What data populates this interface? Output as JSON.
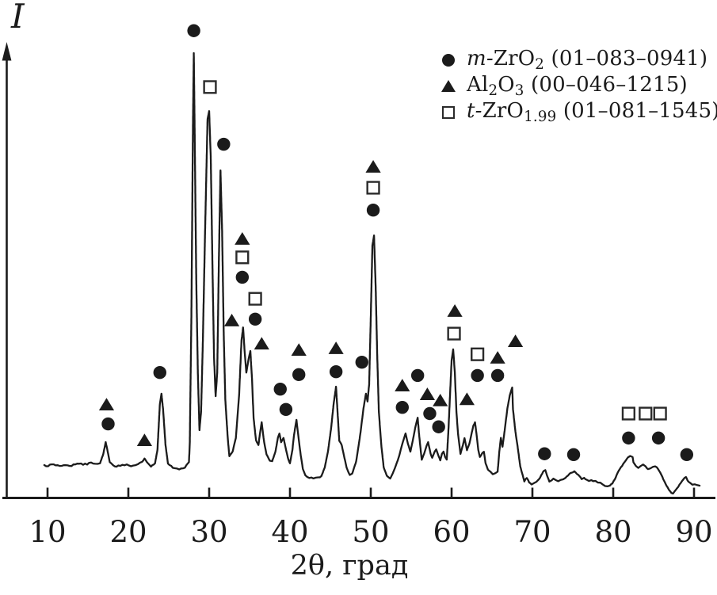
{
  "figure": {
    "y_axis_label": "I",
    "x_axis_label": "2θ, град"
  },
  "legend": {
    "items": [
      {
        "symbol": "filled-circle",
        "phase_id": "m-ZrO2",
        "segments": [
          {
            "text": "m-",
            "style": "italic"
          },
          {
            "text": "ZrO",
            "style": "normal"
          },
          {
            "text": "2",
            "style": "sub"
          },
          {
            "text": " (01–083–0941)",
            "style": "normal"
          }
        ]
      },
      {
        "symbol": "filled-triangle",
        "phase_id": "Al2O3",
        "segments": [
          {
            "text": "Al",
            "style": "normal"
          },
          {
            "text": "2",
            "style": "sub"
          },
          {
            "text": "O",
            "style": "normal"
          },
          {
            "text": "3",
            "style": "sub"
          },
          {
            "text": " (00–046–1215)",
            "style": "normal"
          }
        ]
      },
      {
        "symbol": "open-square",
        "phase_id": "t-ZrO1.99",
        "segments": [
          {
            "text": "t-",
            "style": "italic"
          },
          {
            "text": "ZrO",
            "style": "normal"
          },
          {
            "text": "1.99",
            "style": "sub"
          },
          {
            "text": " (01–081–1545)",
            "style": "normal"
          }
        ]
      }
    ]
  },
  "chart_data": {
    "type": "line",
    "title": "",
    "xlabel": "2θ, град",
    "ylabel": "I",
    "x_range": [
      10,
      90
    ],
    "x_ticks": [
      10,
      20,
      30,
      40,
      50,
      60,
      70,
      80,
      90
    ],
    "y_axis": "relative intensity, arbitrary units (unlabeled)",
    "grid": false,
    "legend_position": "top-right",
    "peaks": [
      {
        "two_theta": 17.2,
        "intensity": 6,
        "phases": [
          "Al2O3",
          "m-ZrO2"
        ]
      },
      {
        "two_theta": 22.0,
        "intensity": 2,
        "phases": [
          "Al2O3"
        ]
      },
      {
        "two_theta": 24.1,
        "intensity": 18,
        "phases": [
          "m-ZrO2"
        ]
      },
      {
        "two_theta": 28.1,
        "intensity": 100,
        "phases": [
          "m-ZrO2"
        ]
      },
      {
        "two_theta": 30.0,
        "intensity": 86,
        "phases": [
          "t-ZrO1.99"
        ]
      },
      {
        "two_theta": 31.4,
        "intensity": 72,
        "phases": [
          "m-ZrO2"
        ]
      },
      {
        "two_theta": 34.2,
        "intensity": 34,
        "phases": [
          "Al2O3",
          "t-ZrO1.99",
          "m-ZrO2"
        ]
      },
      {
        "two_theta": 35.2,
        "intensity": 28,
        "phases": [
          "t-ZrO1.99",
          "m-ZrO2"
        ]
      },
      {
        "two_theta": 36.5,
        "intensity": 11,
        "phases": [
          "Al2O3"
        ]
      },
      {
        "two_theta": 38.7,
        "intensity": 8,
        "phases": [
          "m-ZrO2"
        ]
      },
      {
        "two_theta": 39.5,
        "intensity": 5,
        "phases": [
          "m-ZrO2"
        ]
      },
      {
        "two_theta": 40.8,
        "intensity": 11,
        "phases": [
          "Al2O3",
          "m-ZrO2"
        ]
      },
      {
        "two_theta": 45.7,
        "intensity": 19,
        "phases": [
          "Al2O3",
          "m-ZrO2"
        ]
      },
      {
        "two_theta": 49.4,
        "intensity": 18,
        "phases": [
          "m-ZrO2"
        ]
      },
      {
        "two_theta": 50.4,
        "intensity": 56,
        "phases": [
          "Al2O3",
          "t-ZrO1.99",
          "m-ZrO2"
        ]
      },
      {
        "two_theta": 54.3,
        "intensity": 8,
        "phases": [
          "Al2O3",
          "m-ZrO2"
        ]
      },
      {
        "two_theta": 55.8,
        "intensity": 12,
        "phases": [
          "m-ZrO2"
        ]
      },
      {
        "two_theta": 57.1,
        "intensity": 6,
        "phases": [
          "Al2O3",
          "m-ZrO2"
        ]
      },
      {
        "two_theta": 58.4,
        "intensity": 4,
        "phases": [
          "Al2O3",
          "m-ZrO2"
        ]
      },
      {
        "two_theta": 60.2,
        "intensity": 29,
        "phases": [
          "t-ZrO1.99",
          "Al2O3"
        ]
      },
      {
        "two_theta": 62.9,
        "intensity": 11,
        "phases": [
          "t-ZrO1.99",
          "m-ZrO2"
        ]
      },
      {
        "two_theta": 66.0,
        "intensity": 7,
        "phases": [
          "m-ZrO2"
        ]
      },
      {
        "two_theta": 67.5,
        "intensity": 19,
        "phases": [
          "Al2O3"
        ]
      },
      {
        "two_theta": 71.5,
        "intensity": 3,
        "phases": [
          "m-ZrO2"
        ]
      },
      {
        "two_theta": 75.1,
        "intensity": 3,
        "phases": [
          "m-ZrO2"
        ]
      },
      {
        "two_theta": 82.0,
        "intensity": 8,
        "phases": [
          "t-ZrO1.99",
          "m-ZrO2"
        ]
      },
      {
        "two_theta": 85.5,
        "intensity": 5,
        "phases": [
          "t-ZrO1.99",
          "m-ZrO2"
        ]
      },
      {
        "two_theta": 89.0,
        "intensity": 3,
        "phases": [
          "m-ZrO2"
        ]
      }
    ],
    "markers": {
      "m_zro2_circles": [
        [
          17.5,
          10.5
        ],
        [
          23.9,
          22.9
        ],
        [
          28.1,
          105.4
        ],
        [
          31.8,
          78.0
        ],
        [
          34.1,
          45.9
        ],
        [
          35.7,
          35.8
        ],
        [
          38.8,
          18.9
        ],
        [
          39.5,
          14.0
        ],
        [
          41.1,
          22.4
        ],
        [
          45.7,
          23.1
        ],
        [
          48.9,
          25.4
        ],
        [
          50.3,
          62.1
        ],
        [
          53.9,
          14.5
        ],
        [
          55.8,
          22.2
        ],
        [
          57.3,
          13.0
        ],
        [
          58.4,
          9.8
        ],
        [
          63.2,
          22.2
        ],
        [
          65.7,
          22.2
        ],
        [
          71.5,
          3.3
        ],
        [
          75.1,
          3.1
        ],
        [
          81.9,
          7.1
        ],
        [
          85.6,
          7.1
        ],
        [
          89.1,
          3.1
        ]
      ],
      "al2o3_triangles": [
        [
          17.3,
          15.1
        ],
        [
          22.0,
          6.5
        ],
        [
          32.8,
          35.4
        ],
        [
          34.1,
          55.1
        ],
        [
          36.5,
          29.8
        ],
        [
          41.1,
          28.3
        ],
        [
          45.7,
          28.7
        ],
        [
          50.3,
          72.5
        ],
        [
          53.9,
          19.7
        ],
        [
          57.0,
          17.6
        ],
        [
          58.6,
          16.1
        ],
        [
          60.4,
          37.7
        ],
        [
          61.9,
          16.4
        ],
        [
          65.7,
          26.4
        ],
        [
          67.9,
          30.4
        ]
      ],
      "t_zro199_squares": [
        [
          30.1,
          91.8
        ],
        [
          34.1,
          50.7
        ],
        [
          35.7,
          40.7
        ],
        [
          50.3,
          67.5
        ],
        [
          60.3,
          32.3
        ],
        [
          63.2,
          27.3
        ],
        [
          81.9,
          13.0
        ],
        [
          84.0,
          13.0
        ],
        [
          85.8,
          13.0
        ]
      ]
    },
    "curve": [
      [
        9.6,
        0.4
      ],
      [
        11.0,
        0.6
      ],
      [
        12.5,
        0.4
      ],
      [
        13.9,
        0.8
      ],
      [
        14.9,
        0.8
      ],
      [
        15.4,
        1.3
      ],
      [
        15.9,
        0.8
      ],
      [
        16.5,
        1.0
      ],
      [
        16.9,
        3.3
      ],
      [
        17.2,
        6.1
      ],
      [
        17.5,
        3.3
      ],
      [
        17.7,
        1.3
      ],
      [
        18.3,
        0.2
      ],
      [
        19.0,
        0.4
      ],
      [
        19.8,
        0.6
      ],
      [
        20.6,
        0.4
      ],
      [
        21.2,
        0.8
      ],
      [
        21.7,
        1.3
      ],
      [
        22.0,
        2.1
      ],
      [
        22.4,
        1.0
      ],
      [
        22.8,
        0.2
      ],
      [
        23.3,
        1.0
      ],
      [
        23.6,
        4.2
      ],
      [
        23.9,
        15.3
      ],
      [
        24.1,
        17.8
      ],
      [
        24.3,
        14.0
      ],
      [
        24.6,
        5.4
      ],
      [
        24.9,
        1.0
      ],
      [
        25.5,
        0.0
      ],
      [
        26.3,
        -0.4
      ],
      [
        27.0,
        0.0
      ],
      [
        27.5,
        1.3
      ],
      [
        27.6,
        5.7
      ],
      [
        27.8,
        36.3
      ],
      [
        28.0,
        84.1
      ],
      [
        28.1,
        100.0
      ],
      [
        28.2,
        82.2
      ],
      [
        28.4,
        45.9
      ],
      [
        28.6,
        22.9
      ],
      [
        28.8,
        9.0
      ],
      [
        29.0,
        13.4
      ],
      [
        29.2,
        28.7
      ],
      [
        29.5,
        57.4
      ],
      [
        29.8,
        84.1
      ],
      [
        30.0,
        86.0
      ],
      [
        30.2,
        74.6
      ],
      [
        30.4,
        49.7
      ],
      [
        30.6,
        26.8
      ],
      [
        30.8,
        17.2
      ],
      [
        31.0,
        22.9
      ],
      [
        31.2,
        49.7
      ],
      [
        31.4,
        71.7
      ],
      [
        31.6,
        57.4
      ],
      [
        31.8,
        32.5
      ],
      [
        32.0,
        16.3
      ],
      [
        32.3,
        7.1
      ],
      [
        32.5,
        2.7
      ],
      [
        32.9,
        3.8
      ],
      [
        33.3,
        7.1
      ],
      [
        33.7,
        17.2
      ],
      [
        34.0,
        30.6
      ],
      [
        34.2,
        33.8
      ],
      [
        34.4,
        27.7
      ],
      [
        34.6,
        22.9
      ],
      [
        34.9,
        26.4
      ],
      [
        35.1,
        28.1
      ],
      [
        35.3,
        21.4
      ],
      [
        35.5,
        11.9
      ],
      [
        35.8,
        6.5
      ],
      [
        36.1,
        5.4
      ],
      [
        36.3,
        8.4
      ],
      [
        36.5,
        10.9
      ],
      [
        36.8,
        6.1
      ],
      [
        37.1,
        3.1
      ],
      [
        37.5,
        1.7
      ],
      [
        37.8,
        1.5
      ],
      [
        38.2,
        3.8
      ],
      [
        38.5,
        7.1
      ],
      [
        38.7,
        8.2
      ],
      [
        38.9,
        6.1
      ],
      [
        39.2,
        7.1
      ],
      [
        39.5,
        4.4
      ],
      [
        39.8,
        1.9
      ],
      [
        40.0,
        1.0
      ],
      [
        40.3,
        4.2
      ],
      [
        40.5,
        7.8
      ],
      [
        40.8,
        11.5
      ],
      [
        41.0,
        8.2
      ],
      [
        41.3,
        3.4
      ],
      [
        41.6,
        -0.4
      ],
      [
        41.9,
        -1.9
      ],
      [
        42.4,
        -2.5
      ],
      [
        42.9,
        -2.7
      ],
      [
        43.5,
        -2.5
      ],
      [
        43.9,
        -2.1
      ],
      [
        44.3,
        0.0
      ],
      [
        44.7,
        3.8
      ],
      [
        45.1,
        9.6
      ],
      [
        45.4,
        15.3
      ],
      [
        45.7,
        19.5
      ],
      [
        45.9,
        13.0
      ],
      [
        46.1,
        6.5
      ],
      [
        46.4,
        5.4
      ],
      [
        46.7,
        2.7
      ],
      [
        47.0,
        0.0
      ],
      [
        47.4,
        -1.9
      ],
      [
        47.7,
        -1.5
      ],
      [
        48.2,
        1.5
      ],
      [
        48.7,
        8.0
      ],
      [
        49.1,
        14.3
      ],
      [
        49.4,
        17.8
      ],
      [
        49.6,
        15.9
      ],
      [
        49.8,
        20.1
      ],
      [
        50.0,
        36.3
      ],
      [
        50.2,
        53.5
      ],
      [
        50.4,
        56.0
      ],
      [
        50.6,
        44.0
      ],
      [
        50.8,
        26.8
      ],
      [
        51.0,
        13.4
      ],
      [
        51.3,
        5.4
      ],
      [
        51.6,
        0.0
      ],
      [
        52.0,
        -2.1
      ],
      [
        52.4,
        -2.7
      ],
      [
        52.7,
        -1.5
      ],
      [
        53.1,
        0.4
      ],
      [
        53.5,
        2.7
      ],
      [
        53.9,
        5.7
      ],
      [
        54.3,
        8.2
      ],
      [
        54.6,
        5.7
      ],
      [
        54.9,
        3.8
      ],
      [
        55.2,
        6.5
      ],
      [
        55.5,
        9.6
      ],
      [
        55.8,
        12.0
      ],
      [
        56.0,
        7.5
      ],
      [
        56.3,
        1.9
      ],
      [
        56.6,
        3.3
      ],
      [
        56.9,
        5.2
      ],
      [
        57.1,
        6.1
      ],
      [
        57.4,
        3.3
      ],
      [
        57.6,
        2.3
      ],
      [
        57.9,
        3.8
      ],
      [
        58.1,
        4.4
      ],
      [
        58.4,
        2.7
      ],
      [
        58.6,
        1.7
      ],
      [
        58.8,
        3.3
      ],
      [
        59.0,
        3.8
      ],
      [
        59.2,
        2.5
      ],
      [
        59.4,
        1.9
      ],
      [
        59.6,
        8.6
      ],
      [
        59.8,
        17.2
      ],
      [
        60.0,
        25.8
      ],
      [
        60.2,
        28.5
      ],
      [
        60.4,
        22.9
      ],
      [
        60.6,
        13.4
      ],
      [
        60.8,
        8.0
      ],
      [
        61.1,
        3.3
      ],
      [
        61.4,
        5.4
      ],
      [
        61.6,
        7.1
      ],
      [
        61.9,
        4.2
      ],
      [
        62.2,
        5.7
      ],
      [
        62.5,
        8.4
      ],
      [
        62.7,
        10.1
      ],
      [
        62.9,
        10.9
      ],
      [
        63.1,
        7.8
      ],
      [
        63.3,
        4.2
      ],
      [
        63.5,
        2.5
      ],
      [
        63.8,
        3.4
      ],
      [
        64.0,
        3.8
      ],
      [
        64.2,
        1.1
      ],
      [
        64.5,
        -0.6
      ],
      [
        64.8,
        -1.1
      ],
      [
        65.1,
        -1.5
      ],
      [
        65.4,
        -1.3
      ],
      [
        65.7,
        -1.0
      ],
      [
        65.9,
        3.8
      ],
      [
        66.1,
        7.1
      ],
      [
        66.3,
        5.0
      ],
      [
        66.6,
        9.4
      ],
      [
        66.9,
        14.2
      ],
      [
        67.2,
        17.4
      ],
      [
        67.5,
        19.3
      ],
      [
        67.6,
        14.0
      ],
      [
        67.9,
        8.6
      ],
      [
        68.2,
        4.6
      ],
      [
        68.5,
        0.2
      ],
      [
        68.8,
        -1.9
      ],
      [
        69.0,
        -3.3
      ],
      [
        69.3,
        -2.5
      ],
      [
        69.6,
        -3.6
      ],
      [
        69.9,
        -4.2
      ],
      [
        70.2,
        -3.8
      ],
      [
        70.5,
        -3.4
      ],
      [
        70.8,
        -2.9
      ],
      [
        71.1,
        -1.9
      ],
      [
        71.4,
        -0.8
      ],
      [
        71.6,
        -0.6
      ],
      [
        71.8,
        -1.9
      ],
      [
        72.1,
        -3.3
      ],
      [
        72.4,
        -3.1
      ],
      [
        72.6,
        -2.7
      ],
      [
        72.9,
        -3.1
      ],
      [
        73.2,
        -3.3
      ],
      [
        73.5,
        -3.1
      ],
      [
        73.8,
        -2.9
      ],
      [
        74.1,
        -2.5
      ],
      [
        74.4,
        -1.9
      ],
      [
        74.7,
        -1.3
      ],
      [
        75.0,
        -1.1
      ],
      [
        75.2,
        -1.0
      ],
      [
        75.5,
        -1.5
      ],
      [
        75.8,
        -2.1
      ],
      [
        76.1,
        -2.7
      ],
      [
        76.4,
        -2.5
      ],
      [
        76.7,
        -3.1
      ],
      [
        77.0,
        -3.3
      ],
      [
        77.3,
        -3.1
      ],
      [
        77.5,
        -3.4
      ],
      [
        77.8,
        -3.3
      ],
      [
        78.1,
        -3.6
      ],
      [
        78.4,
        -3.8
      ],
      [
        78.7,
        -4.0
      ],
      [
        79.0,
        -4.4
      ],
      [
        79.3,
        -4.6
      ],
      [
        79.6,
        -4.4
      ],
      [
        79.9,
        -3.8
      ],
      [
        80.2,
        -2.9
      ],
      [
        80.5,
        -1.5
      ],
      [
        80.8,
        -0.4
      ],
      [
        81.1,
        0.4
      ],
      [
        81.4,
        1.3
      ],
      [
        81.8,
        2.3
      ],
      [
        82.1,
        2.7
      ],
      [
        82.4,
        2.5
      ],
      [
        82.5,
        1.3
      ],
      [
        82.8,
        0.4
      ],
      [
        83.1,
        0.0
      ],
      [
        83.4,
        0.4
      ],
      [
        83.7,
        0.6
      ],
      [
        84.0,
        0.2
      ],
      [
        84.3,
        -0.4
      ],
      [
        84.6,
        -0.2
      ],
      [
        84.9,
        0.0
      ],
      [
        85.2,
        0.2
      ],
      [
        85.4,
        0.0
      ],
      [
        85.7,
        -0.8
      ],
      [
        86.0,
        -1.9
      ],
      [
        86.3,
        -3.3
      ],
      [
        86.6,
        -4.4
      ],
      [
        86.9,
        -5.4
      ],
      [
        87.2,
        -6.1
      ],
      [
        87.4,
        -6.3
      ],
      [
        87.6,
        -5.7
      ],
      [
        87.9,
        -5.0
      ],
      [
        88.2,
        -4.2
      ],
      [
        88.5,
        -3.3
      ],
      [
        88.8,
        -2.5
      ],
      [
        89.0,
        -2.3
      ],
      [
        89.2,
        -3.1
      ],
      [
        89.5,
        -3.8
      ],
      [
        89.8,
        -4.2
      ],
      [
        90.1,
        -4.0
      ],
      [
        90.4,
        -4.2
      ],
      [
        90.7,
        -4.4
      ]
    ]
  }
}
